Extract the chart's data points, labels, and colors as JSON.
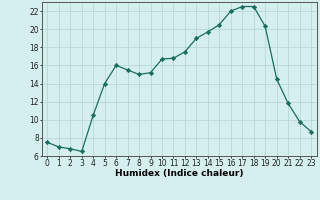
{
  "x": [
    0,
    1,
    2,
    3,
    4,
    5,
    6,
    7,
    8,
    9,
    10,
    11,
    12,
    13,
    14,
    15,
    16,
    17,
    18,
    19,
    20,
    21,
    22,
    23
  ],
  "y": [
    7.5,
    7.0,
    6.8,
    6.5,
    10.5,
    14.0,
    16.0,
    15.5,
    15.0,
    15.2,
    16.7,
    16.8,
    17.5,
    19.0,
    19.7,
    20.5,
    22.0,
    22.5,
    22.5,
    20.3,
    14.5,
    11.8,
    9.8,
    8.7
  ],
  "line_color": "#1a6e5e",
  "marker": "D",
  "marker_size": 2.2,
  "bg_color": "#d5efef",
  "grid_color": "#b8d8d8",
  "xlabel": "Humidex (Indice chaleur)",
  "ylim": [
    6,
    23
  ],
  "xlim": [
    -0.5,
    23.5
  ],
  "yticks": [
    6,
    8,
    10,
    12,
    14,
    16,
    18,
    20,
    22
  ],
  "xticks": [
    0,
    1,
    2,
    3,
    4,
    5,
    6,
    7,
    8,
    9,
    10,
    11,
    12,
    13,
    14,
    15,
    16,
    17,
    18,
    19,
    20,
    21,
    22,
    23
  ],
  "tick_fontsize": 5.5,
  "xlabel_fontsize": 6.5,
  "linewidth": 0.9
}
